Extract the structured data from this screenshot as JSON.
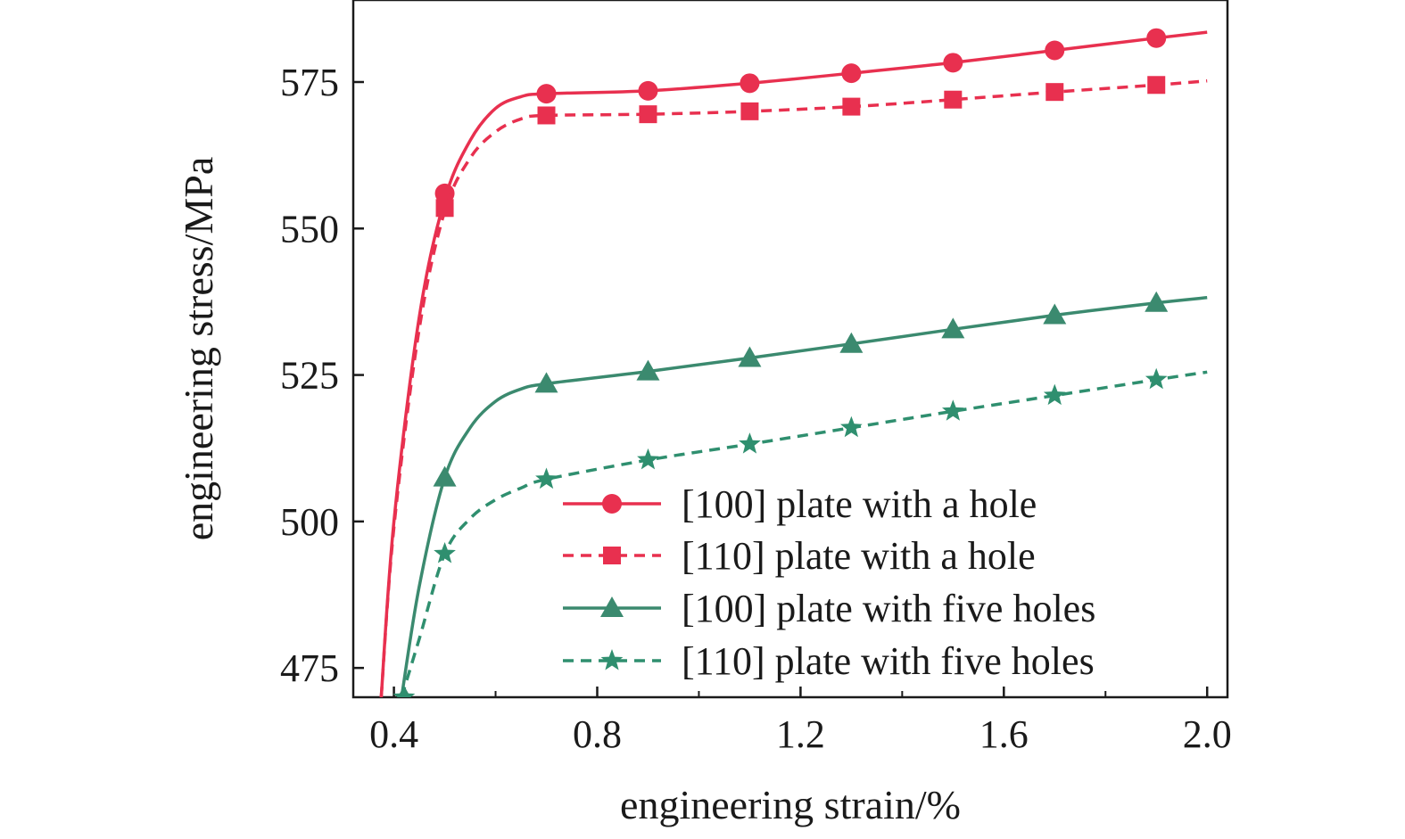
{
  "chart_data": {
    "type": "line",
    "xlabel": "engineering strain/%",
    "ylabel": "engineering stress/MPa",
    "xlim": [
      0.32,
      2.04
    ],
    "ylim": [
      470,
      589
    ],
    "xticks": [
      0.4,
      0.8,
      1.2,
      1.6,
      2.0
    ],
    "xtick_labels": [
      "0.4",
      "0.8",
      "1.2",
      "1.6",
      "2.0"
    ],
    "yticks": [
      475,
      500,
      525,
      550,
      575
    ],
    "ytick_labels": [
      "475",
      "500",
      "525",
      "550",
      "575"
    ],
    "grid": false,
    "legend_position": "bottom-right",
    "series": [
      {
        "name": "[100] plate with a hole",
        "color": "#e8304f",
        "dash": "solid",
        "marker": "circle",
        "curve": [
          [
            0.375,
            470
          ],
          [
            0.4,
            500
          ],
          [
            0.45,
            535
          ],
          [
            0.5,
            555
          ],
          [
            0.55,
            565
          ],
          [
            0.6,
            570.5
          ],
          [
            0.65,
            572.5
          ],
          [
            0.7,
            573
          ],
          [
            0.9,
            573.5
          ],
          [
            1.1,
            574.8
          ],
          [
            1.3,
            576.5
          ],
          [
            1.5,
            578.3
          ],
          [
            1.7,
            580.4
          ],
          [
            1.9,
            582.5
          ],
          [
            2.0,
            583.5
          ]
        ],
        "markers": [
          [
            0.5,
            556
          ],
          [
            0.7,
            573
          ],
          [
            0.9,
            573.5
          ],
          [
            1.1,
            574.8
          ],
          [
            1.3,
            576.5
          ],
          [
            1.5,
            578.3
          ],
          [
            1.7,
            580.4
          ],
          [
            1.9,
            582.5
          ]
        ]
      },
      {
        "name": "[110] plate with a hole",
        "color": "#e8304f",
        "dash": "dashed",
        "marker": "square",
        "curve": [
          [
            0.375,
            470
          ],
          [
            0.4,
            499
          ],
          [
            0.45,
            533
          ],
          [
            0.5,
            553
          ],
          [
            0.55,
            562
          ],
          [
            0.6,
            566.5
          ],
          [
            0.65,
            568.7
          ],
          [
            0.7,
            569.3
          ],
          [
            0.9,
            569.5
          ],
          [
            1.1,
            570
          ],
          [
            1.3,
            570.8
          ],
          [
            1.5,
            572
          ],
          [
            1.7,
            573.3
          ],
          [
            1.9,
            574.5
          ],
          [
            2.0,
            575.2
          ]
        ],
        "markers": [
          [
            0.5,
            553.5
          ],
          [
            0.7,
            569.3
          ],
          [
            0.9,
            569.5
          ],
          [
            1.1,
            570
          ],
          [
            1.3,
            570.8
          ],
          [
            1.5,
            572
          ],
          [
            1.7,
            573.3
          ],
          [
            1.9,
            574.5
          ]
        ]
      },
      {
        "name": "[100] plate with five holes",
        "color": "#3b8a6f",
        "dash": "solid",
        "marker": "triangle",
        "curve": [
          [
            0.415,
            470
          ],
          [
            0.45,
            489
          ],
          [
            0.5,
            507.5
          ],
          [
            0.55,
            516
          ],
          [
            0.6,
            520.5
          ],
          [
            0.65,
            522.6
          ],
          [
            0.7,
            523.5
          ],
          [
            0.9,
            525.6
          ],
          [
            1.1,
            527.9
          ],
          [
            1.3,
            530.3
          ],
          [
            1.5,
            532.8
          ],
          [
            1.7,
            535.2
          ],
          [
            1.9,
            537.3
          ],
          [
            2.0,
            538.2
          ]
        ],
        "markers": [
          [
            0.42,
            470
          ],
          [
            0.5,
            507.5
          ],
          [
            0.7,
            523.5
          ],
          [
            0.9,
            525.6
          ],
          [
            1.1,
            527.9
          ],
          [
            1.3,
            530.3
          ],
          [
            1.5,
            532.8
          ],
          [
            1.7,
            535.2
          ],
          [
            1.9,
            537.3
          ]
        ]
      },
      {
        "name": "[110] plate with five holes",
        "color": "#2f8f6f",
        "dash": "dashed",
        "marker": "star",
        "curve": [
          [
            0.415,
            470
          ],
          [
            0.45,
            480
          ],
          [
            0.5,
            494.5
          ],
          [
            0.55,
            500.5
          ],
          [
            0.6,
            503.7
          ],
          [
            0.65,
            505.7
          ],
          [
            0.7,
            507.2
          ],
          [
            0.9,
            510.5
          ],
          [
            1.1,
            513.2
          ],
          [
            1.3,
            516
          ],
          [
            1.5,
            518.8
          ],
          [
            1.7,
            521.5
          ],
          [
            1.9,
            524.2
          ],
          [
            2.0,
            525.5
          ]
        ],
        "markers": [
          [
            0.42,
            470
          ],
          [
            0.5,
            494.5
          ],
          [
            0.7,
            507.2
          ],
          [
            0.9,
            510.5
          ],
          [
            1.1,
            513.2
          ],
          [
            1.3,
            516
          ],
          [
            1.5,
            518.8
          ],
          [
            1.7,
            521.5
          ],
          [
            1.9,
            524.2
          ]
        ]
      }
    ]
  }
}
